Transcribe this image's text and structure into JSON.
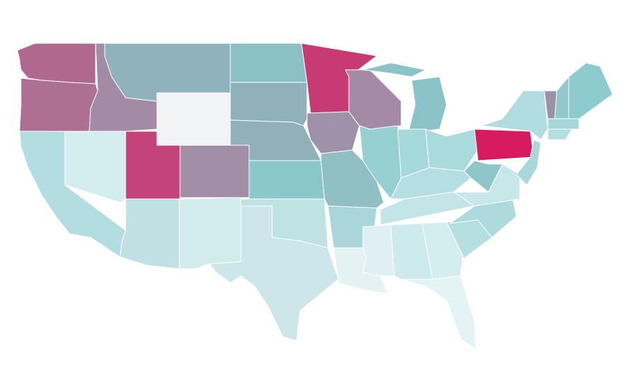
{
  "map": {
    "fills": [
      "#b0688f",
      "#ad7093",
      "#b3dde0",
      "#d4eef0",
      "#a38aa5",
      "#8fb2bc",
      "#f2f3f5",
      "#c4437a",
      "#a38ea7",
      "#bfe1e4",
      "#d2ecee",
      "#8bc0c6",
      "#90b0ba",
      "#90b0ba",
      "#8ac8cc",
      "#bfe3e3",
      "#cde6ea",
      "#c73a72",
      "#9d92a9",
      "#91c0c4",
      "#a9d6db",
      "#e4f2f3",
      "#a48aa6",
      "#97d0d3",
      "#8cc3c9",
      "#8cc3c9",
      "#a6d9dc",
      "#a9dbdd",
      "#b5dfe2",
      "#e0f0f2",
      "#cdeaec",
      "#d4eef0",
      "#e4f3f4",
      "#c3e5e7",
      "#b6dfe2",
      "#acdadd",
      "#c8e7e9",
      "#d81b60",
      "#b2dde0",
      "#a8d8db",
      "#9b92a8",
      "#92c8cc",
      "#8ccbce",
      "#a6d7da",
      "#b2dfe1",
      "#8fc6ca"
    ]
  }
}
